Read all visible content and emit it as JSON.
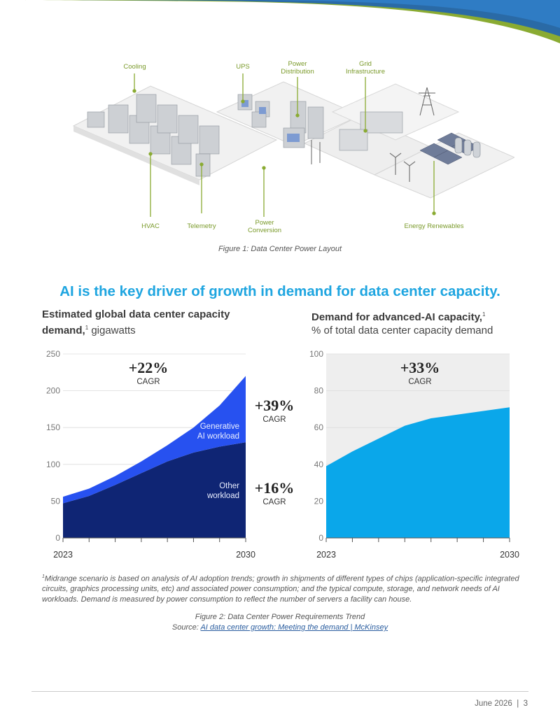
{
  "figure1": {
    "callouts": {
      "cooling": "Cooling",
      "ups": "UPS",
      "power_distribution": "Power Distribution",
      "grid_infrastructure": "Grid Infrastructure",
      "hvac": "HVAC",
      "telemetry": "Telemetry",
      "power_conversion": "Power Conversion",
      "energy_renewables": "Energy Renewables"
    },
    "caption": "Figure 1: Data Center Power Layout",
    "accent_color": "#8aab32"
  },
  "headline": "AI is the key driver of growth in demand for data center capacity.",
  "chart_data": [
    {
      "type": "area",
      "title_bold": "Estimated global data center capacity demand,",
      "title_sup": "1",
      "title_rest": "gigawatts",
      "x": [
        2023,
        2024,
        2025,
        2026,
        2027,
        2028,
        2029,
        2030
      ],
      "x_tick_labels": [
        "2023",
        "2030"
      ],
      "ylim": [
        0,
        250
      ],
      "y_ticks": [
        0,
        50,
        100,
        150,
        200,
        250
      ],
      "series": [
        {
          "name": "Other workload",
          "values": [
            47,
            57,
            72,
            88,
            104,
            116,
            124,
            130
          ],
          "color": "#0f2574"
        },
        {
          "name": "Generative AI workload",
          "values": [
            9,
            10,
            12,
            16,
            22,
            34,
            56,
            90
          ],
          "color": "#2751f0"
        }
      ],
      "series_labels": {
        "other": "Other workload",
        "genai": "Generative AI workload"
      },
      "annotations": [
        {
          "value": "+22%",
          "label": "CAGR"
        },
        {
          "value": "+39%",
          "label": "CAGR"
        },
        {
          "value": "+16%",
          "label": "CAGR"
        }
      ]
    },
    {
      "type": "area",
      "title_bold": "Demand for advanced-AI capacity,",
      "title_sup": "1",
      "title_rest": "% of total data center capacity demand",
      "x": [
        2023,
        2024,
        2025,
        2026,
        2027,
        2028,
        2029,
        2030
      ],
      "x_tick_labels": [
        "2023",
        "2030"
      ],
      "ylim": [
        0,
        100
      ],
      "y_ticks": [
        0,
        20,
        40,
        60,
        80,
        100
      ],
      "series": [
        {
          "name": "Advanced-AI share",
          "values": [
            39,
            47,
            54,
            61,
            65,
            67,
            69,
            71
          ],
          "color": "#0aa7ea"
        }
      ],
      "background_color": "#eeeeee",
      "annotations": [
        {
          "value": "+33%",
          "label": "CAGR"
        }
      ]
    }
  ],
  "footnote": {
    "marker": "1",
    "text": "Midrange scenario is based on analysis of AI adoption trends; growth in shipments of different types of chips (application-specific integrated circuits, graphics processing units, etc) and associated power consumption; and the typical compute, storage, and network needs of AI workloads. Demand is measured by power consumption to reflect the number of servers a facility can house."
  },
  "figure2": {
    "caption": "Figure 2: Data Center Power Requirements Trend",
    "source_prefix": "Source: ",
    "source_link": "AI data center growth: Meeting the demand | McKinsey"
  },
  "footer": {
    "date": "June 2026",
    "separator": "|",
    "page_number": "3"
  }
}
